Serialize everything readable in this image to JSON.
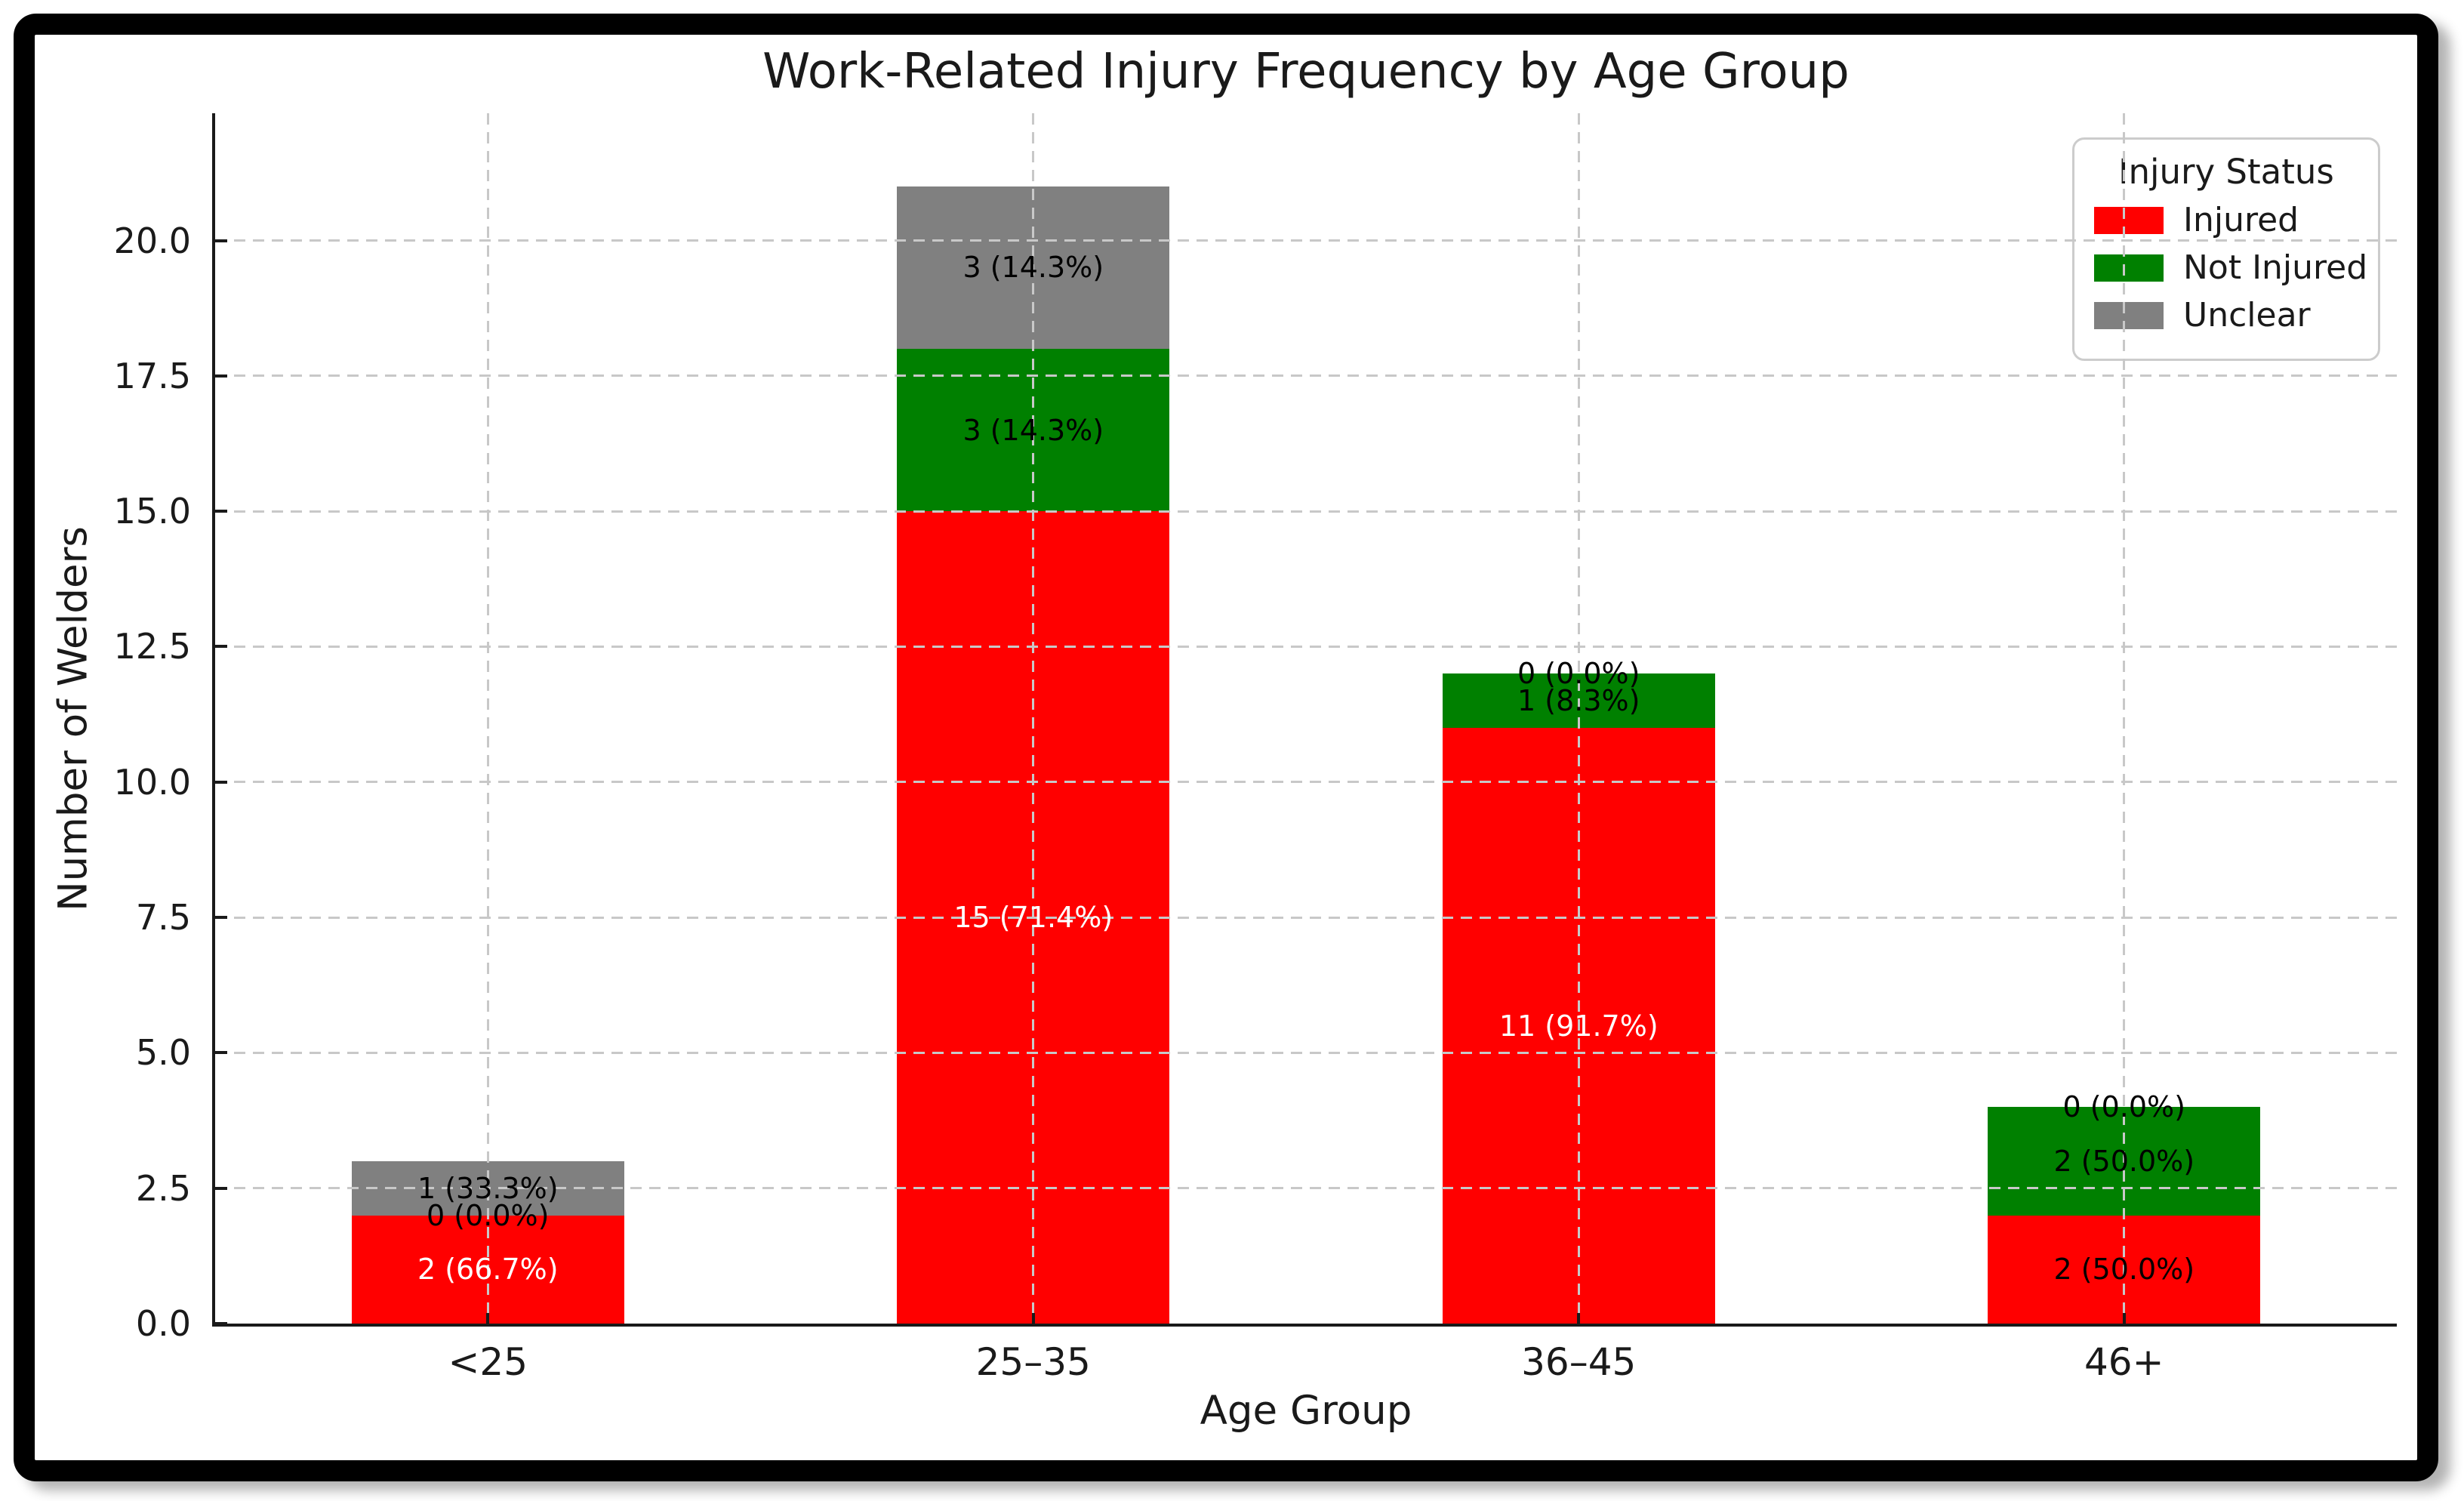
{
  "figure": {
    "background": "#ffffff",
    "frame_color": "#000000",
    "grid_color": "#c8c8c8",
    "text_color": "#1a1a1a"
  },
  "chart_data": {
    "type": "bar",
    "stacked": true,
    "title": "Work-Related Injury Frequency by Age Group",
    "xlabel": "Age Group",
    "ylabel": "Number of Welders",
    "categories": [
      "<25",
      "25–35",
      "36–45",
      "46+"
    ],
    "totals": [
      3,
      21,
      12,
      4
    ],
    "series": [
      {
        "name": "Injured",
        "color": "#ff0000",
        "values": [
          2,
          15,
          11,
          2
        ],
        "labels": [
          "2 (66.7%)",
          "15 (71.4%)",
          "11 (91.7%)",
          "2 (50.0%)"
        ],
        "label_colors": [
          "#ffffff",
          "#ffffff",
          "#ffffff",
          "#000000"
        ]
      },
      {
        "name": "Not Injured",
        "color": "#008000",
        "values": [
          0,
          3,
          1,
          2
        ],
        "labels": [
          "0 (0.0%)",
          "3 (14.3%)",
          "1 (8.3%)",
          "2 (50.0%)"
        ],
        "label_colors": [
          "#000000",
          "#000000",
          "#000000",
          "#000000"
        ]
      },
      {
        "name": "Unclear",
        "color": "#808080",
        "values": [
          1,
          3,
          0,
          0
        ],
        "labels": [
          "1 (33.3%)",
          "3 (14.3%)",
          "0 (0.0%)",
          "0 (0.0%)"
        ],
        "label_colors": [
          "#000000",
          "#000000",
          "#000000",
          "#000000"
        ]
      }
    ],
    "yticks": [
      0,
      2.5,
      5,
      7.5,
      10,
      12.5,
      15,
      17.5,
      20
    ],
    "ytick_format_decimals": 1,
    "ylim": [
      0,
      22.35
    ],
    "grid": true,
    "legend": {
      "title": "Injury Status",
      "position": "upper right"
    }
  }
}
